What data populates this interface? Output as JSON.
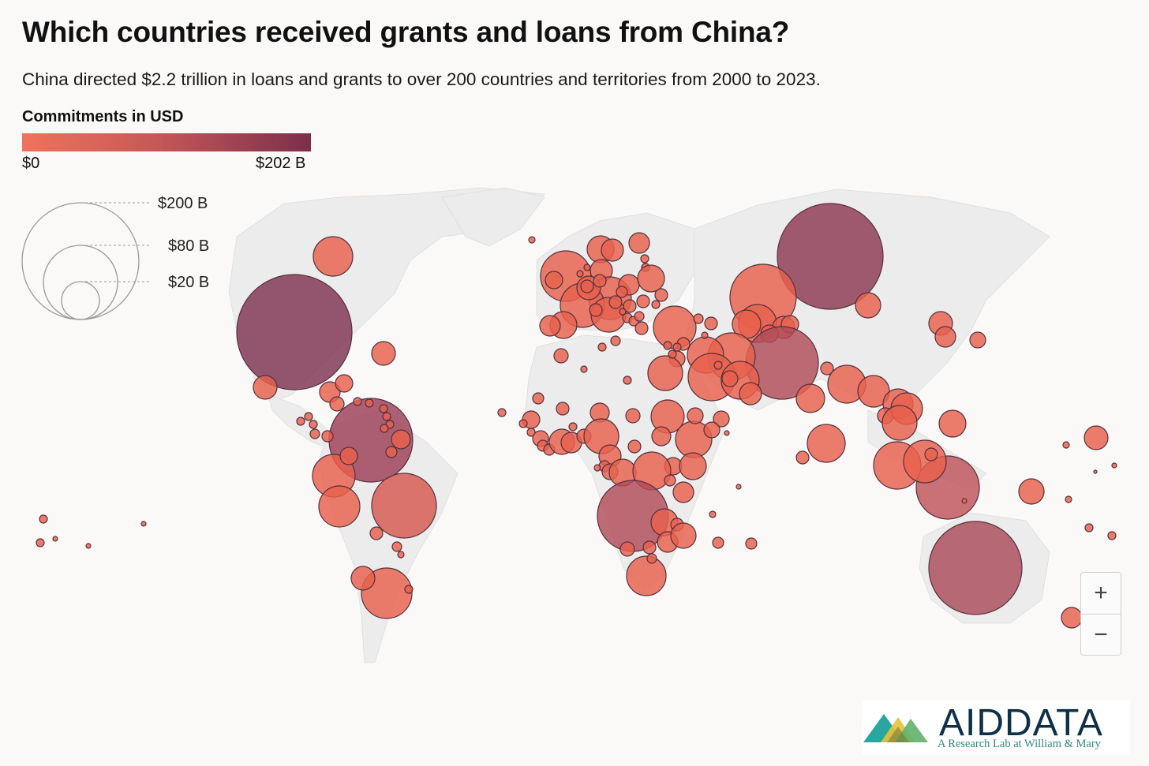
{
  "header": {
    "title": "Which countries received grants and loans from China?",
    "subtitle": "China directed $2.2 trillion in loans and grants to over 200 countries and territories from 2000 to 2023."
  },
  "color_legend": {
    "title": "Commitments in USD",
    "min_label": "$0",
    "max_label": "$202 B",
    "color_low": "#f0735a",
    "color_high": "#7c2e4c"
  },
  "size_legend": {
    "items": [
      {
        "label": "$200 B",
        "value": 200
      },
      {
        "label": "$80 B",
        "value": 80
      },
      {
        "label": "$20 B",
        "value": 20
      }
    ]
  },
  "zoom": {
    "in_label": "+",
    "out_label": "−"
  },
  "logo": {
    "word": "AIDDATA",
    "tagline": "A Research Lab at William & Mary"
  },
  "colors": {
    "background": "#faf9f8",
    "land": "#ececec",
    "bubble_fill": "#e8604d",
    "bubble_stroke": "#55303c"
  }
}
